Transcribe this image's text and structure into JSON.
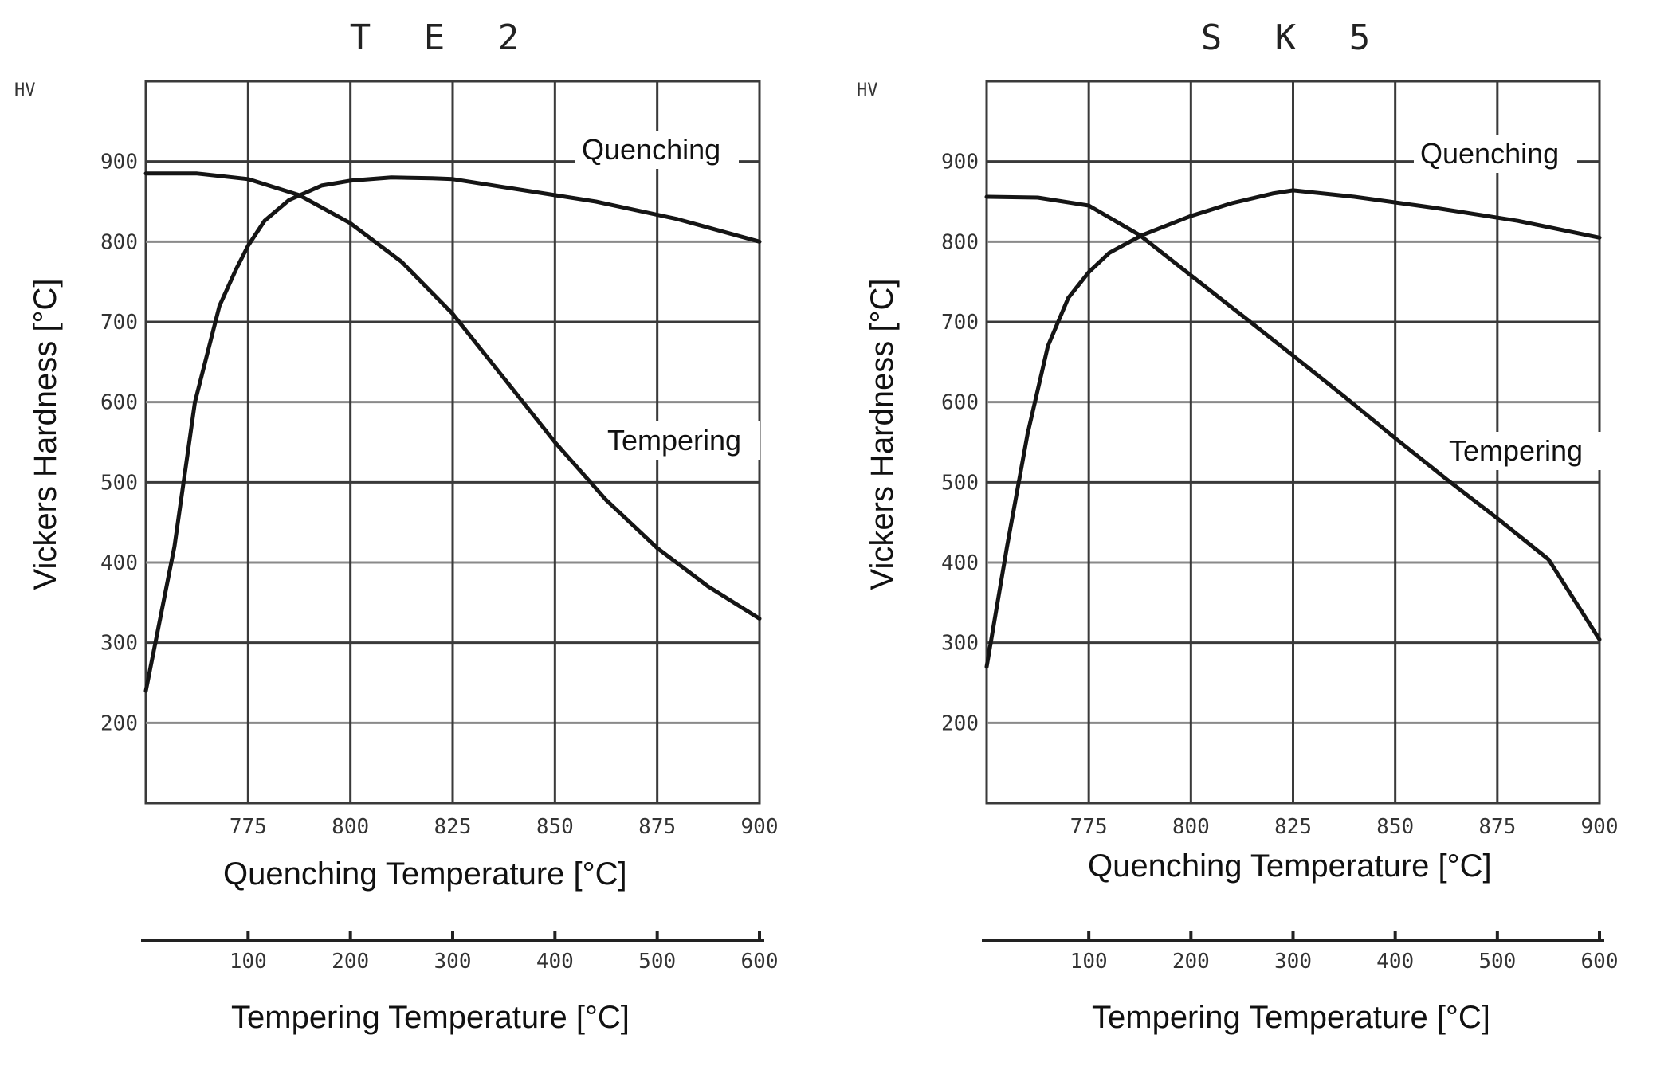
{
  "chart_data": [
    {
      "type": "line",
      "title": "T E 2",
      "ylabel": "Vickers Hardness [°C]",
      "yunit": "HV",
      "ylim": [
        100,
        1000
      ],
      "yticks": [
        "900",
        "800",
        "700",
        "600",
        "500",
        "400",
        "300",
        "200"
      ],
      "quench_axis": {
        "label": "Quenching Temperature [°C]",
        "range": [
          750,
          900
        ],
        "ticks": [
          "775",
          "800",
          "825",
          "850",
          "875",
          "900"
        ]
      },
      "temper_axis": {
        "label": "Tempering Temperature [°C]",
        "range": [
          0,
          600
        ],
        "ticks": [
          "100",
          "200",
          "300",
          "400",
          "500",
          "600"
        ]
      },
      "series": [
        {
          "name": "Quenching",
          "x": [
            750,
            757,
            762,
            768,
            772,
            775,
            779,
            785,
            793,
            800,
            810,
            820,
            825,
            840,
            860,
            880,
            900
          ],
          "values": [
            240,
            420,
            600,
            720,
            765,
            795,
            826,
            852,
            870,
            876,
            880,
            879,
            878,
            866,
            850,
            828,
            800
          ]
        },
        {
          "name": "Tempering",
          "x": [
            0,
            50,
            100,
            150,
            200,
            250,
            300,
            350,
            400,
            450,
            500,
            550,
            600
          ],
          "values": [
            885,
            885,
            878,
            858,
            823,
            775,
            710,
            630,
            550,
            478,
            418,
            370,
            330
          ]
        }
      ]
    },
    {
      "type": "line",
      "title": "S K 5",
      "ylabel": "Vickers Hardness [°C]",
      "yunit": "HV",
      "ylim": [
        100,
        1000
      ],
      "yticks": [
        "900",
        "800",
        "700",
        "600",
        "500",
        "400",
        "300",
        "200"
      ],
      "quench_axis": {
        "label": "Quenching Temperature [°C]",
        "range": [
          750,
          900
        ],
        "ticks": [
          "775",
          "800",
          "825",
          "850",
          "875",
          "900"
        ]
      },
      "temper_axis": {
        "label": "Tempering Temperature [°C]",
        "range": [
          0,
          600
        ],
        "ticks": [
          "100",
          "200",
          "300",
          "400",
          "500",
          "600"
        ]
      },
      "series": [
        {
          "name": "Quenching",
          "x": [
            750,
            755,
            760,
            765,
            770,
            775,
            780,
            788,
            795,
            800,
            810,
            820,
            825,
            840,
            860,
            880,
            900
          ],
          "values": [
            270,
            420,
            560,
            670,
            730,
            762,
            786,
            808,
            822,
            832,
            848,
            860,
            864,
            856,
            842,
            826,
            805
          ]
        },
        {
          "name": "Tempering",
          "x": [
            0,
            50,
            100,
            150,
            200,
            250,
            300,
            350,
            400,
            450,
            500,
            550,
            600
          ],
          "values": [
            856,
            855,
            845,
            808,
            758,
            708,
            658,
            607,
            555,
            504,
            455,
            404,
            304
          ]
        }
      ]
    }
  ]
}
